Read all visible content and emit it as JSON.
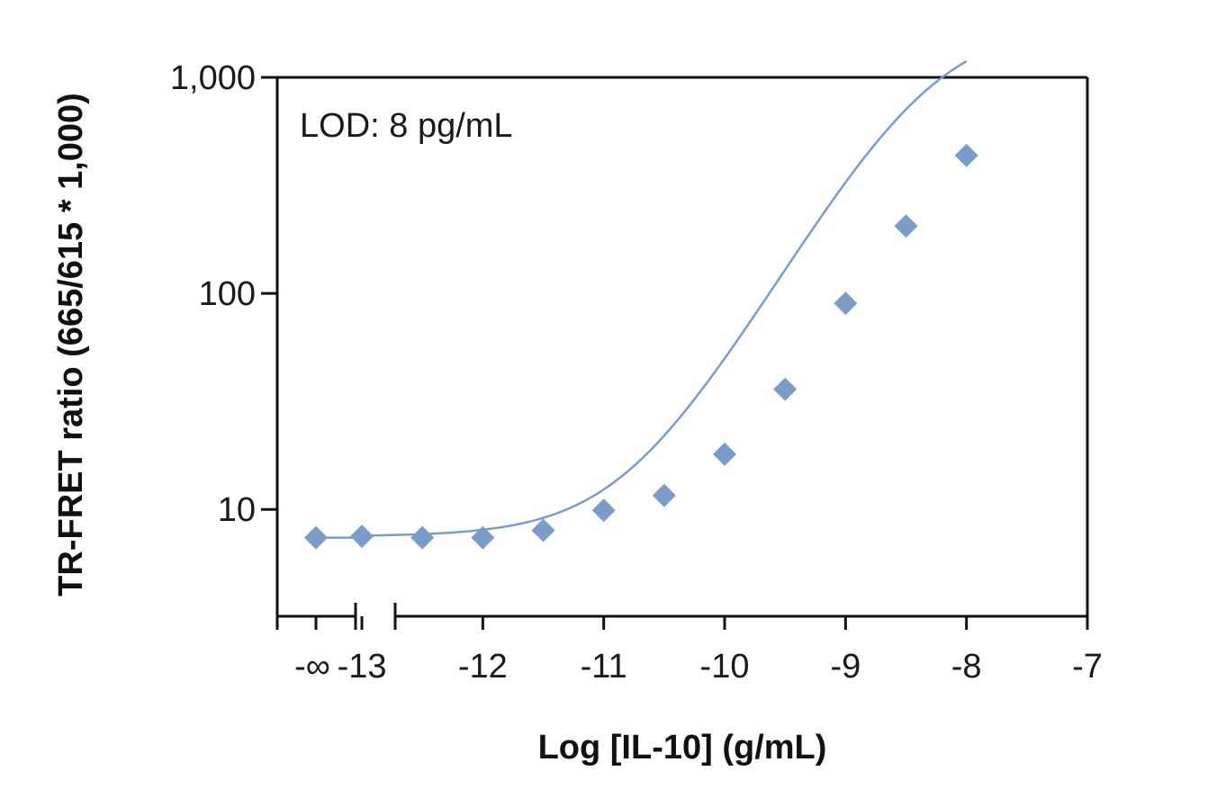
{
  "chart_data": {
    "type": "scatter",
    "xlabel": "Log [IL-10] (g/mL)",
    "ylabel": "TR-FRET ratio (665/615 * 1,000)",
    "annotation": "LOD: 8 pg/mL",
    "y_scale": "log",
    "ylim": [
      3.2,
      1000
    ],
    "xlim": [
      -13.7,
      -7
    ],
    "y_ticks": [
      {
        "value": 10,
        "label": "10"
      },
      {
        "value": 100,
        "label": "100"
      },
      {
        "value": 1000,
        "label": "1,000"
      }
    ],
    "x_ticks": [
      {
        "value": -13,
        "label": "-13"
      },
      {
        "value": -12,
        "label": "-12"
      },
      {
        "value": -11,
        "label": "-11"
      },
      {
        "value": -10,
        "label": "-10"
      },
      {
        "value": -9,
        "label": "-9"
      },
      {
        "value": -8,
        "label": "-8"
      },
      {
        "value": -7,
        "label": "-7"
      }
    ],
    "zero_label": "-∞",
    "zero_point": {
      "y": 7.4
    },
    "points": [
      {
        "x": -13,
        "y": 7.5
      },
      {
        "x": -12.5,
        "y": 7.4
      },
      {
        "x": -12,
        "y": 7.4
      },
      {
        "x": -11.5,
        "y": 8.0
      },
      {
        "x": -11,
        "y": 9.9
      },
      {
        "x": -10.5,
        "y": 11.6
      },
      {
        "x": -10,
        "y": 18
      },
      {
        "x": -9.5,
        "y": 36
      },
      {
        "x": -9,
        "y": 90
      },
      {
        "x": -8.5,
        "y": 205
      },
      {
        "x": -8,
        "y": 435
      }
    ],
    "fit": {
      "bottom": 7.5,
      "top": 1800,
      "log_ec50": -8.3,
      "hill": 0.95
    },
    "colors": {
      "series": "#7b9cc9",
      "axis": "#111111"
    },
    "grid": false
  }
}
